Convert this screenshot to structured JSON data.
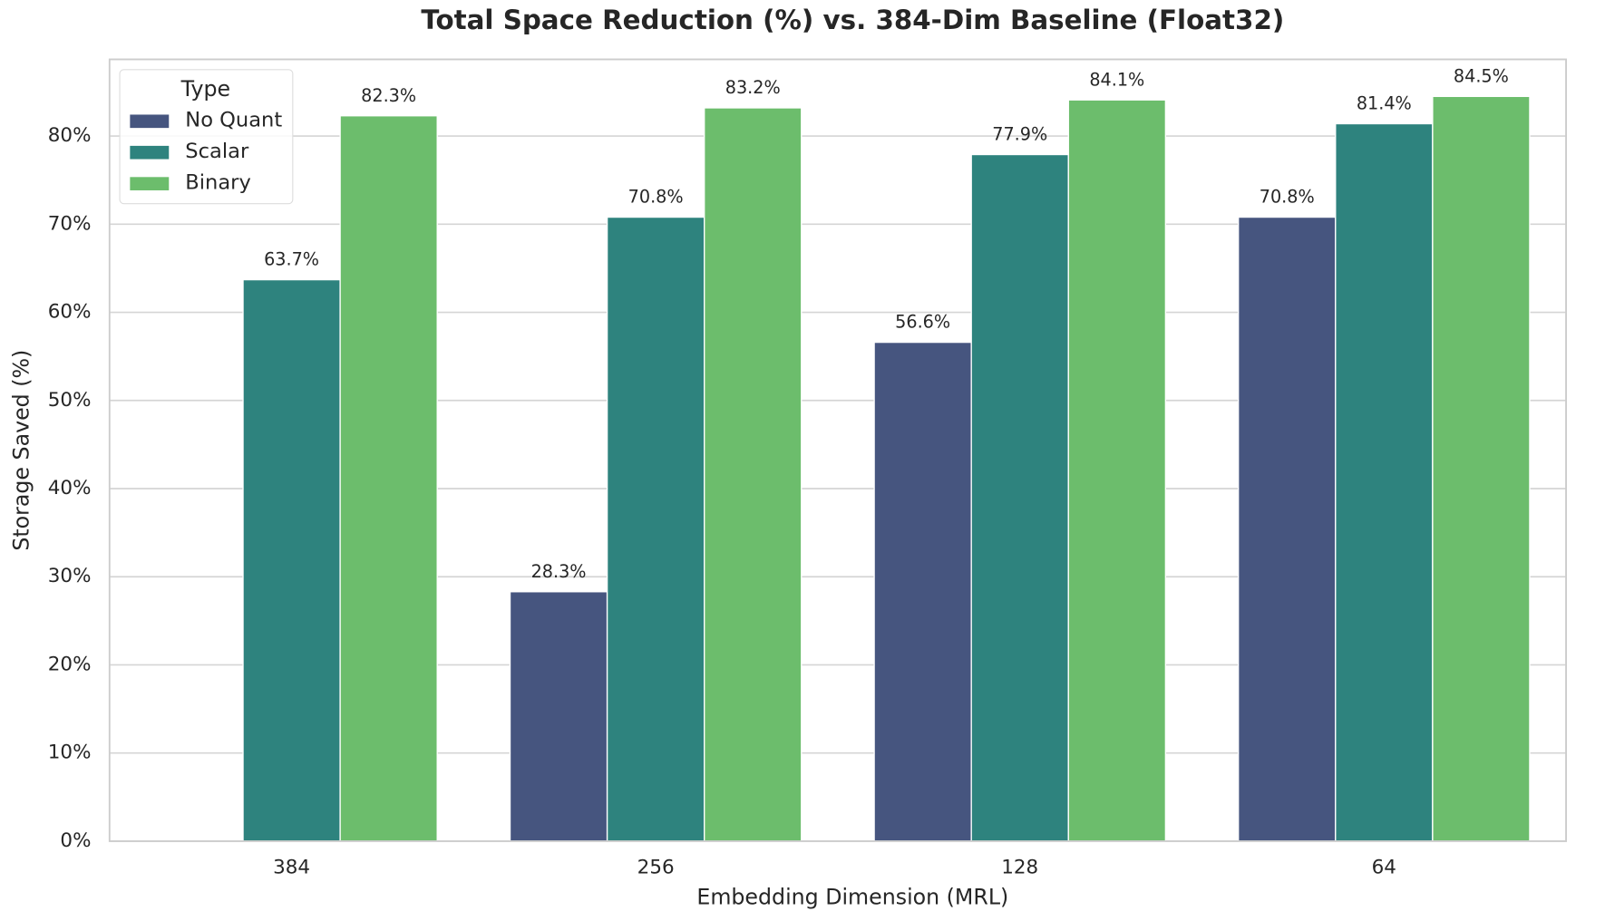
{
  "chart_data": {
    "type": "bar",
    "title": "Total Space Reduction (%) vs. 384-Dim Baseline (Float32)",
    "x_label": "Embedding Dimension (MRL)",
    "y_label": "Storage Saved (%)",
    "categories": [
      "384",
      "256",
      "128",
      "64"
    ],
    "series": [
      {
        "name": "No Quant",
        "color": "#46557f",
        "values": [
          null,
          28.3,
          56.6,
          70.8
        ],
        "value_labels": [
          null,
          "28.3%",
          "56.6%",
          "70.8%"
        ]
      },
      {
        "name": "Scalar",
        "color": "#2e837e",
        "values": [
          63.7,
          70.8,
          77.9,
          81.4
        ],
        "value_labels": [
          "63.7%",
          "70.8%",
          "77.9%",
          "81.4%"
        ]
      },
      {
        "name": "Binary",
        "color": "#6cbd6c",
        "values": [
          82.3,
          83.2,
          84.1,
          84.5
        ],
        "value_labels": [
          "82.3%",
          "83.2%",
          "84.1%",
          "84.5%"
        ]
      }
    ],
    "legend_title": "Type",
    "legend": "upper left",
    "ylim": [
      0,
      88.7
    ],
    "yticks": [
      {
        "value": 0,
        "label": "0%"
      },
      {
        "value": 10,
        "label": "10%"
      },
      {
        "value": 20,
        "label": "20%"
      },
      {
        "value": 30,
        "label": "30%"
      },
      {
        "value": 40,
        "label": "40%"
      },
      {
        "value": 50,
        "label": "50%"
      },
      {
        "value": 60,
        "label": "60%"
      },
      {
        "value": 70,
        "label": "70%"
      },
      {
        "value": 80,
        "label": "80%"
      }
    ],
    "grid": true
  }
}
